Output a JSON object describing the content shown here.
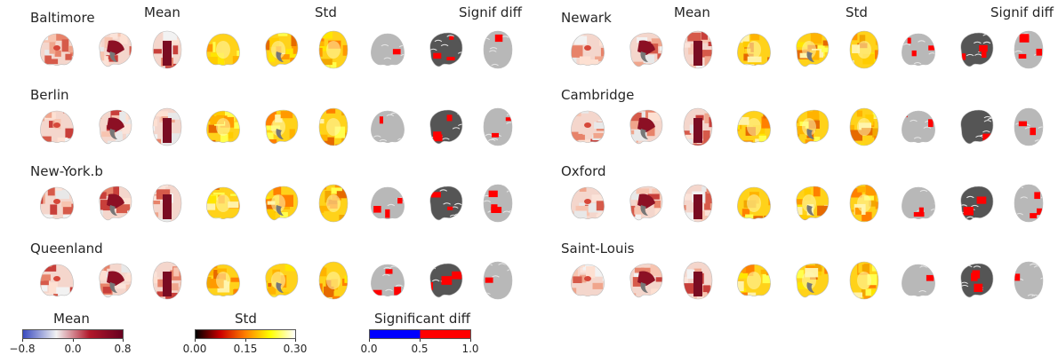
{
  "panels": [
    {
      "headers": [
        "Mean",
        "Std",
        "Signif diff"
      ],
      "sites": [
        "Baltimore",
        "Berlin",
        "New-York.b",
        "Queenland"
      ]
    },
    {
      "headers": [
        "Mean",
        "Std",
        "Signif diff"
      ],
      "sites": [
        "Newark",
        "Cambridge",
        "Oxford",
        "Saint-Louis"
      ]
    }
  ],
  "views": [
    "coronal",
    "sagittal",
    "axial"
  ],
  "colorbars": [
    {
      "title": "Mean",
      "ticks": [
        "−0.8",
        "0.0",
        "0.8"
      ],
      "colors": [
        "#3b4cc0",
        "#f2f2f2",
        "#b2182b",
        "#67001f"
      ]
    },
    {
      "title": "Std",
      "ticks": [
        "0.00",
        "0.15",
        "0.30"
      ],
      "colors": [
        "#000000",
        "#cc0000",
        "#ff7f00",
        "#ffff00",
        "#ffffff"
      ]
    },
    {
      "title": "Significant diff",
      "ticks": [
        "0.0",
        "0.5",
        "1.0"
      ],
      "colors": [
        "#0000ff",
        "#ff0000"
      ]
    }
  ]
}
